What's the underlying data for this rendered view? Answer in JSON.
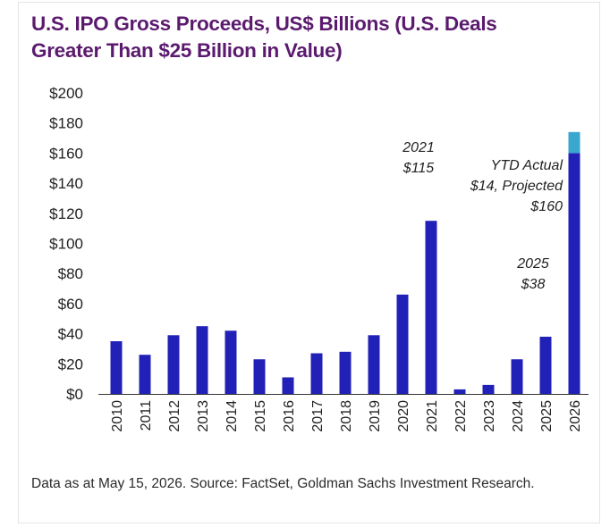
{
  "title_line1": "U.S. IPO Gross Proceeds, US$ Billions (U.S. Deals",
  "title_line2": "Greater Than $25 Billion in Value)",
  "footnote": "Data as at May 15, 2026. Source: FactSet, Goldman Sachs Investment Research.",
  "colors": {
    "title": "#5b1a6e",
    "bar": "#2121b8",
    "bar_ytd": "#3aa7cf",
    "text": "#222222"
  },
  "chart_data": {
    "type": "bar",
    "stacked": true,
    "title": "U.S. IPO Gross Proceeds, US$ Billions (U.S. Deals Greater Than $25 Billion in Value)",
    "categories": [
      "2010",
      "2011",
      "2012",
      "2013",
      "2014",
      "2015",
      "2016",
      "2017",
      "2018",
      "2019",
      "2020",
      "2021",
      "2022",
      "2023",
      "2024",
      "2025",
      "2026"
    ],
    "series": [
      {
        "values": [
          35,
          26,
          39,
          45,
          42,
          23,
          11,
          27,
          28,
          39,
          66,
          115,
          3,
          6,
          23,
          38,
          160
        ]
      },
      {
        "values": [
          0,
          0,
          0,
          0,
          0,
          0,
          0,
          0,
          0,
          0,
          0,
          0,
          0,
          0,
          0,
          0,
          14
        ]
      }
    ],
    "ylim": [
      0,
      200
    ],
    "yticks": [
      0,
      20,
      40,
      60,
      80,
      100,
      120,
      140,
      160,
      180,
      200
    ],
    "ytick_labels": [
      "$0",
      "$20",
      "$40",
      "$60",
      "$80",
      "$100",
      "$120",
      "$140",
      "$160",
      "$180",
      "$200"
    ],
    "grid": false,
    "annotations": [
      {
        "category": "2021",
        "lines": [
          "2021",
          "$115"
        ]
      },
      {
        "category": "2025",
        "lines": [
          "2025",
          "$38"
        ]
      },
      {
        "category": "2026",
        "lines": [
          "YTD Actual",
          "$14, Projected",
          "$160"
        ]
      }
    ]
  }
}
